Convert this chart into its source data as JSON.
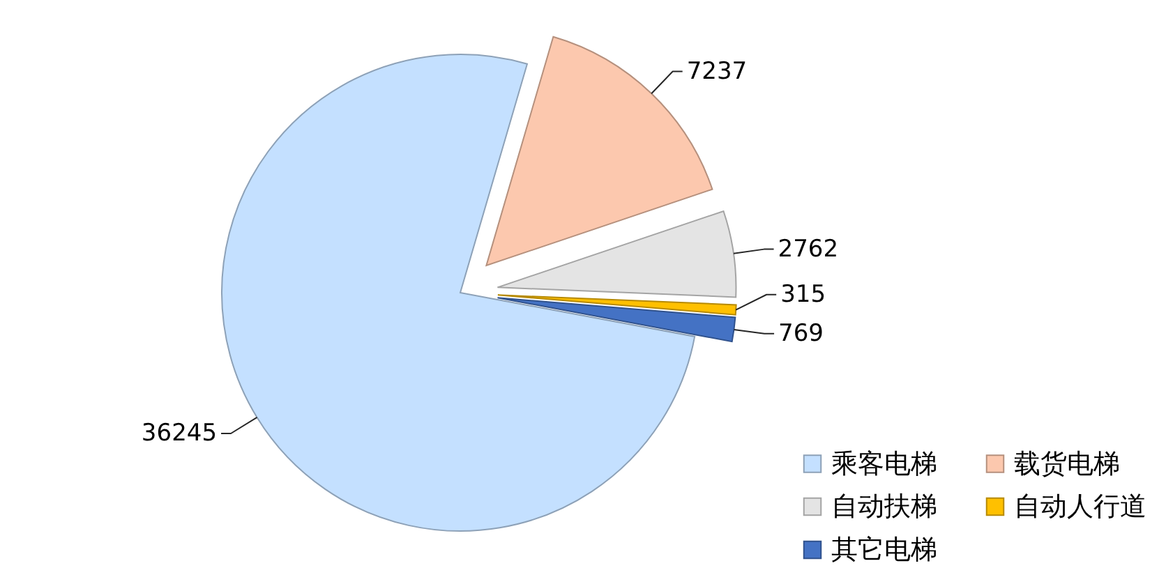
{
  "chart_data": {
    "type": "pie",
    "categories": [
      "乘客电梯",
      "载货电梯",
      "自动扶梯",
      "自动人行道",
      "其它电梯"
    ],
    "values": [
      36245,
      7237,
      2762,
      315,
      769
    ],
    "colors": [
      "#c4e0ff",
      "#fcc8ae",
      "#e4e4e4",
      "#ffc000",
      "#4472c4"
    ],
    "data_labels": true,
    "legend": "bottom right"
  }
}
